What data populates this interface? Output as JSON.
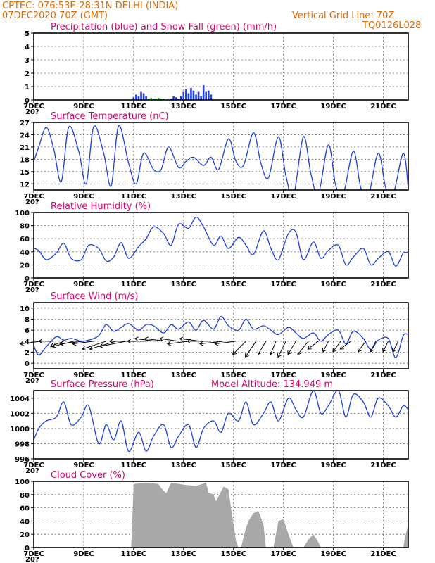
{
  "header": {
    "line1": "CPTEC:   076:53E-28:31N   DELHI (INDIA)",
    "line2": "07DEC2020 70Z (GMT)",
    "right1": "Vertical Grid Line: 70Z",
    "right2": "TQ0126L028"
  },
  "colors": {
    "header": "#e06a00",
    "title": "#d6006e",
    "line": "#2040e0",
    "snow": "#1a9a2a",
    "cloud": "#a9a9a9",
    "arrow": "#000000"
  },
  "x_axis": {
    "start_day": 7,
    "end_day": 22,
    "tick_labels": [
      "7DEC",
      "9DEC",
      "11DEC",
      "13DEC",
      "15DEC",
      "17DEC",
      "19DEC",
      "21DEC"
    ],
    "tick_days": [
      7,
      9,
      11,
      13,
      15,
      17,
      19,
      21
    ],
    "under_label": "20?"
  },
  "chart_data": [
    {
      "id": "precip",
      "type": "bar",
      "title": "Precipitation (blue) and Snow Fall (green) (mm/h)",
      "ylim": [
        0,
        5
      ],
      "yticks": [
        0,
        1,
        2,
        3,
        4,
        5
      ],
      "series": [
        {
          "name": "Precipitation",
          "color": "#2040e0",
          "x": [
            11.0,
            11.1,
            11.2,
            11.3,
            11.4,
            11.5,
            12.5,
            12.6,
            12.7,
            12.8,
            12.9,
            13.0,
            13.1,
            13.2,
            13.3,
            13.4,
            13.5,
            13.6,
            13.7,
            13.8,
            13.9,
            14.0,
            14.1
          ],
          "values": [
            0.2,
            0.4,
            0.3,
            0.6,
            0.5,
            0.3,
            0.1,
            0.3,
            0.2,
            0.1,
            0.3,
            0.6,
            0.8,
            0.5,
            0.9,
            0.7,
            0.4,
            0.6,
            0.3,
            1.1,
            0.6,
            0.7,
            0.4
          ]
        },
        {
          "name": "Snow Fall",
          "color": "#1a9a2a",
          "x": [
            11.6,
            11.7,
            11.8,
            11.9,
            12.0,
            12.1,
            12.2
          ],
          "values": [
            0.1,
            0.15,
            0.1,
            0.1,
            0.15,
            0.1,
            0.1
          ]
        }
      ]
    },
    {
      "id": "temp",
      "type": "line",
      "title": "Surface Temperature (nC)",
      "ylim": [
        10.5,
        27
      ],
      "yticks": [
        12,
        15,
        18,
        21,
        24,
        27
      ],
      "x": [
        7.0,
        7.2,
        7.5,
        7.8,
        8.1,
        8.4,
        8.8,
        9.1,
        9.4,
        9.8,
        10.1,
        10.4,
        10.8,
        11.1,
        11.4,
        11.8,
        12.1,
        12.4,
        12.8,
        13.1,
        13.4,
        13.8,
        14.1,
        14.4,
        14.8,
        15.1,
        15.4,
        15.8,
        16.1,
        16.4,
        16.8,
        17.1,
        17.4,
        17.8,
        18.1,
        18.4,
        18.8,
        19.1,
        19.4,
        19.8,
        20.1,
        20.4,
        20.8,
        21.1,
        21.4,
        21.8,
        22.0
      ],
      "values": [
        17.5,
        21.0,
        25.8,
        20.5,
        12.5,
        25.9,
        20.0,
        12.0,
        26.0,
        19.5,
        11.5,
        26.2,
        17.0,
        12.0,
        19.5,
        15.5,
        15.5,
        21.0,
        16.0,
        17.5,
        18.5,
        16.5,
        18.5,
        15.5,
        23.0,
        17.5,
        16.5,
        24.5,
        17.0,
        13.5,
        23.5,
        14.0,
        9.0,
        23.5,
        14.5,
        9.5,
        21.5,
        11.5,
        9.5,
        20.0,
        11.0,
        9.0,
        19.5,
        11.0,
        9.5,
        19.5,
        11.0
      ]
    },
    {
      "id": "rh",
      "type": "line",
      "title": "Relative Humidity (%)",
      "ylim": [
        0,
        100
      ],
      "yticks": [
        0,
        20,
        40,
        60,
        80,
        100
      ],
      "x": [
        7.0,
        7.2,
        7.5,
        7.9,
        8.2,
        8.5,
        8.9,
        9.2,
        9.6,
        9.9,
        10.2,
        10.5,
        10.8,
        11.2,
        11.5,
        11.8,
        12.2,
        12.5,
        12.8,
        13.2,
        13.5,
        13.8,
        14.2,
        14.5,
        14.8,
        15.2,
        15.5,
        15.8,
        16.2,
        16.5,
        16.8,
        17.2,
        17.5,
        17.8,
        18.2,
        18.5,
        18.8,
        19.2,
        19.5,
        19.8,
        20.2,
        20.5,
        20.8,
        21.2,
        21.5,
        21.8,
        22.0
      ],
      "values": [
        45,
        42,
        28,
        38,
        53,
        30,
        28,
        50,
        45,
        26,
        32,
        54,
        30,
        48,
        60,
        78,
        68,
        50,
        82,
        76,
        93,
        78,
        50,
        64,
        45,
        62,
        50,
        36,
        72,
        45,
        28,
        68,
        70,
        28,
        55,
        30,
        42,
        50,
        20,
        32,
        45,
        20,
        30,
        40,
        18,
        38,
        38
      ]
    },
    {
      "id": "wind",
      "type": "line",
      "title": "Surface Wind (m/s)",
      "ylim": [
        -1,
        11
      ],
      "yticks": [
        0,
        2,
        4,
        6,
        8,
        10
      ],
      "x": [
        7.0,
        7.2,
        7.5,
        7.9,
        8.2,
        8.5,
        8.9,
        9.2,
        9.6,
        9.9,
        10.2,
        10.5,
        10.8,
        11.2,
        11.5,
        11.8,
        12.2,
        12.5,
        12.8,
        13.2,
        13.5,
        13.8,
        14.2,
        14.5,
        14.8,
        15.2,
        15.5,
        15.8,
        16.2,
        16.5,
        16.8,
        17.2,
        17.5,
        17.8,
        18.2,
        18.5,
        18.8,
        19.2,
        19.5,
        19.8,
        20.2,
        20.5,
        20.8,
        21.2,
        21.5,
        21.8,
        22.0
      ],
      "values": [
        3.2,
        1.5,
        3.0,
        4.8,
        4.2,
        4.5,
        4.0,
        4.2,
        5.0,
        7.0,
        5.8,
        6.5,
        7.2,
        6.0,
        7.0,
        6.8,
        5.5,
        7.0,
        6.2,
        7.5,
        6.0,
        7.8,
        6.2,
        8.5,
        6.8,
        6.0,
        8.0,
        6.2,
        6.8,
        6.0,
        5.2,
        6.5,
        5.5,
        4.5,
        5.5,
        4.0,
        5.2,
        6.0,
        3.5,
        5.8,
        4.5,
        2.5,
        4.2,
        4.5,
        1.0,
        5.0,
        5.2
      ]
    },
    {
      "id": "pressure",
      "type": "line",
      "title": "Surface Pressure (hPa)",
      "annotation": "Model Altitude: 134.949 m",
      "ylim": [
        996,
        1005
      ],
      "yticks": [
        996,
        998,
        1000,
        1002,
        1004
      ],
      "x": [
        7.0,
        7.2,
        7.5,
        7.9,
        8.2,
        8.5,
        8.9,
        9.2,
        9.6,
        9.9,
        10.2,
        10.5,
        10.8,
        11.2,
        11.5,
        11.8,
        12.2,
        12.5,
        12.8,
        13.2,
        13.5,
        13.8,
        14.2,
        14.5,
        14.8,
        15.2,
        15.5,
        15.8,
        16.2,
        16.5,
        16.8,
        17.2,
        17.5,
        17.8,
        18.2,
        18.5,
        18.8,
        19.2,
        19.5,
        19.8,
        20.2,
        20.5,
        20.8,
        21.2,
        21.5,
        21.8,
        22.0
      ],
      "values": [
        998.5,
        1000.0,
        1001.0,
        1001.5,
        1003.5,
        1000.5,
        1001.5,
        1003.0,
        998.0,
        1000.5,
        998.5,
        1001.0,
        997.0,
        999.5,
        997.0,
        999.0,
        1000.5,
        997.5,
        999.0,
        1000.5,
        997.5,
        1000.0,
        1001.0,
        999.5,
        1002.0,
        1001.0,
        1003.5,
        1000.5,
        1002.0,
        1003.5,
        1001.0,
        1004.0,
        1002.5,
        1001.5,
        1005.0,
        1002.0,
        1003.0,
        1005.0,
        1001.5,
        1004.5,
        1003.5,
        1001.5,
        1004.0,
        1003.0,
        1001.5,
        1003.0,
        1002.5
      ]
    },
    {
      "id": "cloud",
      "type": "area",
      "title": "Cloud Cover (%)",
      "ylim": [
        0,
        100
      ],
      "yticks": [
        0,
        20,
        40,
        60,
        80,
        100
      ],
      "x": [
        10.9,
        11.0,
        11.5,
        12.0,
        12.1,
        12.3,
        12.5,
        13.0,
        13.5,
        13.9,
        14.0,
        14.2,
        14.3,
        14.6,
        14.8,
        14.9,
        15.1,
        15.2,
        15.3,
        15.5,
        15.6,
        15.8,
        16.0,
        16.2,
        16.3,
        16.6,
        16.7,
        16.8,
        17.0,
        17.2,
        17.4,
        17.6,
        17.8,
        18.0,
        18.2,
        18.4,
        18.5,
        21.8,
        21.9,
        22.0
      ],
      "values": [
        0,
        96,
        98,
        96,
        90,
        82,
        98,
        95,
        93,
        98,
        83,
        80,
        70,
        92,
        88,
        60,
        10,
        0,
        0,
        30,
        40,
        52,
        55,
        35,
        0,
        0,
        20,
        40,
        43,
        20,
        0,
        0,
        0,
        12,
        20,
        8,
        0,
        0,
        20,
        35
      ]
    }
  ],
  "wind_vectors": {
    "y_level": 4,
    "days": [
      7.3,
      7.8,
      8.2,
      8.6,
      9.0,
      9.4,
      9.9,
      10.3,
      10.7,
      11.1,
      11.5,
      11.9,
      12.3,
      12.8,
      13.2,
      13.7,
      14.1,
      14.6,
      15.1,
      15.5,
      15.9,
      16.3,
      16.7,
      17.1,
      17.5,
      18.0,
      18.4,
      18.8,
      19.3,
      19.7,
      20.3,
      20.7,
      21.2,
      21.6
    ],
    "u": [
      -4.0,
      -2.8,
      -2.5,
      -4.0,
      -4.5,
      -4.0,
      -4.5,
      -5.0,
      -5.0,
      -5.0,
      -3.5,
      -4.0,
      -4.0,
      -3.5,
      -4.0,
      -4.0,
      -4.5,
      -4.5,
      -4.0,
      -2.5,
      -2.0,
      -1.5,
      -1.0,
      -1.5,
      -1.5,
      -2.0,
      -2.0,
      -1.0,
      -1.5,
      -2.0,
      -1.5,
      -1.0,
      -1.0,
      -1.0
    ],
    "v": [
      -0.5,
      0.0,
      -1.0,
      -1.0,
      -0.5,
      -0.5,
      -1.5,
      -1.5,
      -1.0,
      0.0,
      0.0,
      0.5,
      0.5,
      0.5,
      -0.5,
      0.5,
      0.0,
      -0.5,
      -0.5,
      -2.5,
      -3.0,
      -2.5,
      -2.5,
      -3.0,
      -2.5,
      -2.5,
      -1.5,
      -2.0,
      -2.0,
      -1.5,
      -2.0,
      -2.0,
      -2.0,
      -2.0
    ]
  }
}
